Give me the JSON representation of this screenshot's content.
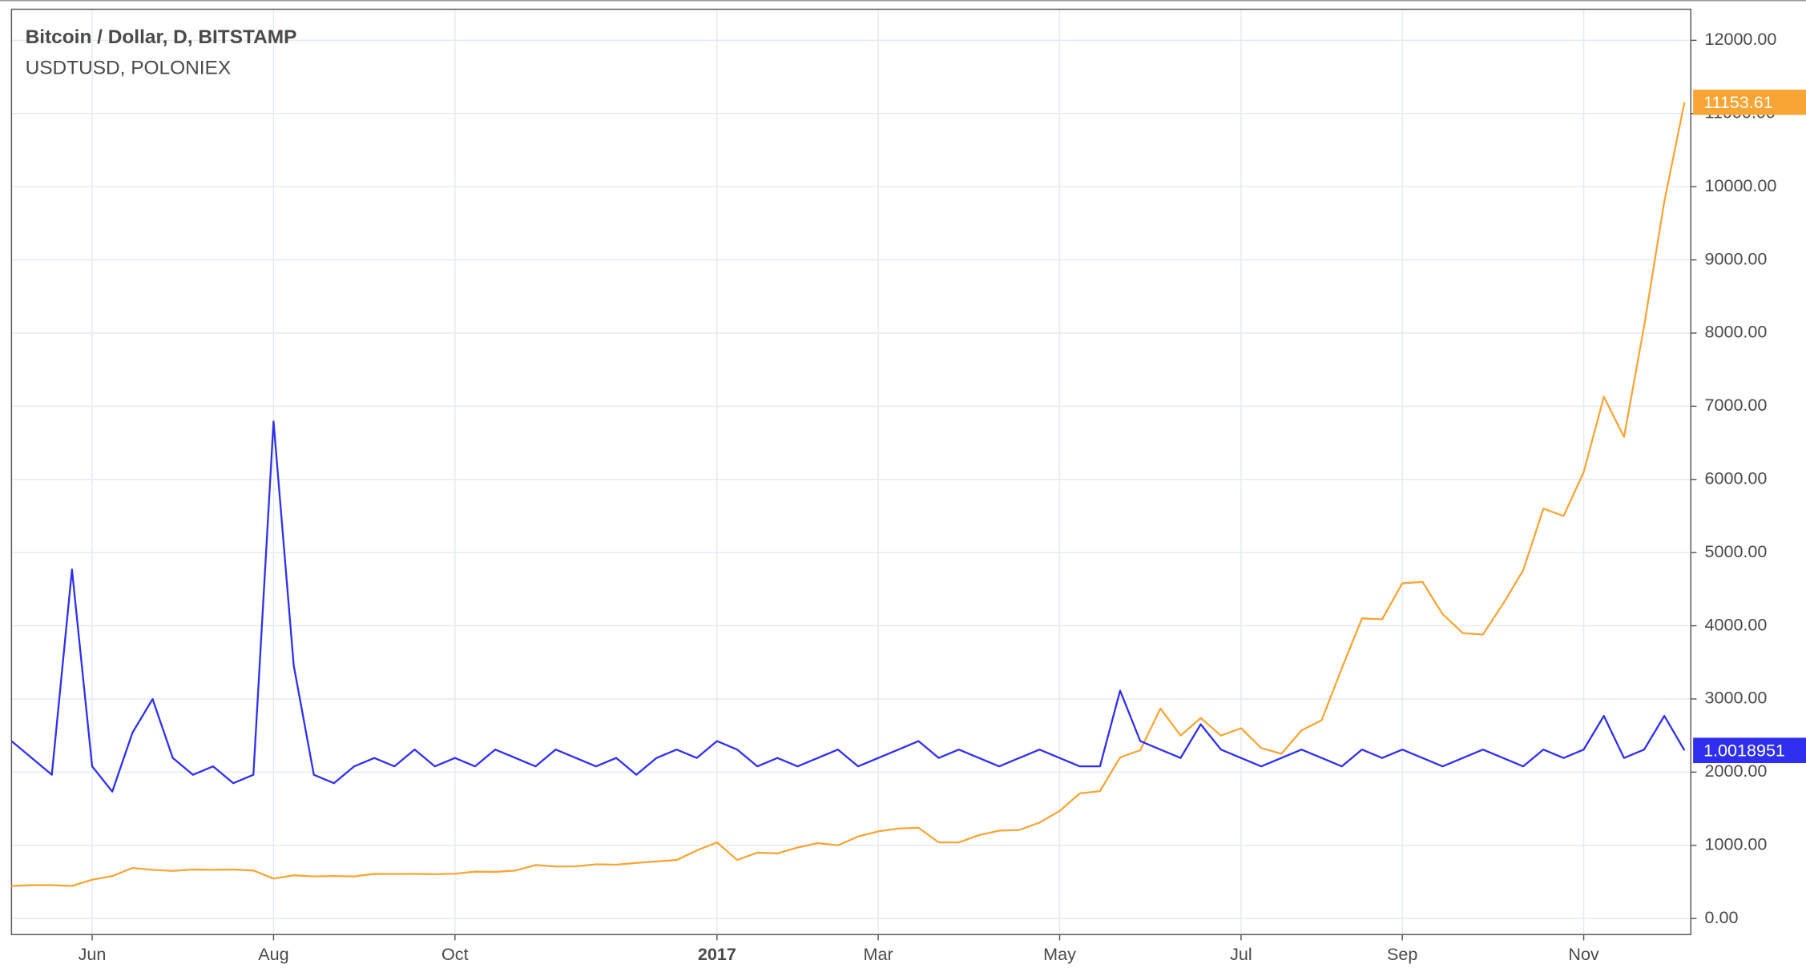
{
  "chart_data": {
    "type": "line",
    "categories": [
      null,
      null,
      null,
      null,
      "Jun",
      null,
      null,
      null,
      null,
      null,
      null,
      null,
      null,
      "Aug",
      null,
      null,
      null,
      null,
      null,
      null,
      null,
      null,
      "Oct",
      null,
      null,
      null,
      null,
      null,
      null,
      null,
      null,
      null,
      null,
      null,
      null,
      "2017",
      null,
      null,
      null,
      null,
      null,
      null,
      null,
      "Mar",
      null,
      null,
      null,
      null,
      null,
      null,
      null,
      null,
      "May",
      null,
      null,
      null,
      null,
      null,
      null,
      null,
      null,
      "Jul",
      null,
      null,
      null,
      null,
      null,
      null,
      null,
      "Sep",
      null,
      null,
      null,
      null,
      null,
      null,
      null,
      null,
      "Nov",
      null,
      null,
      null,
      null,
      null
    ],
    "series": [
      {
        "name": "Bitcoin / Dollar, D, BITSTAMP",
        "color": "#f9a535",
        "axis": "y",
        "values": [
          445,
          455,
          455,
          445,
          530,
          580,
          690,
          665,
          650,
          670,
          665,
          670,
          655,
          545,
          590,
          575,
          580,
          575,
          610,
          608,
          610,
          605,
          612,
          640,
          637,
          655,
          730,
          710,
          712,
          740,
          735,
          760,
          780,
          800,
          930,
          1040,
          800,
          900,
          890,
          970,
          1030,
          1000,
          1120,
          1190,
          1230,
          1240,
          1040,
          1040,
          1140,
          1200,
          1210,
          1310,
          1470,
          1710,
          1740,
          2200,
          2300,
          2870,
          2500,
          2740,
          2500,
          2600,
          2330,
          2250,
          2570,
          2710,
          3420,
          4100,
          4090,
          4580,
          4600,
          4160,
          3900,
          3880,
          4300,
          4760,
          5600,
          5500,
          6100,
          7130,
          6580,
          8100,
          9800,
          11153.61
        ]
      },
      {
        "name": "USDTUSD, POLONIEX",
        "color": "#2f2ff2",
        "axis": "y2",
        "values": [
          1.003,
          1.001,
          0.999,
          1.0234,
          1.0,
          0.997,
          1.004,
          1.008,
          1.001,
          0.999,
          1.0,
          0.998,
          0.999,
          1.041,
          1.012,
          0.999,
          0.998,
          1.0,
          1.001,
          1.0,
          1.002,
          1.0,
          1.001,
          1.0,
          1.002,
          1.001,
          1.0,
          1.002,
          1.001,
          1.0,
          1.001,
          0.999,
          1.001,
          1.002,
          1.001,
          1.003,
          1.002,
          1.0,
          1.001,
          1.0,
          1.001,
          1.002,
          1.0,
          1.001,
          1.002,
          1.003,
          1.001,
          1.002,
          1.001,
          1.0,
          1.001,
          1.002,
          1.001,
          1.0,
          1.0,
          1.009,
          1.003,
          1.002,
          1.001,
          1.005,
          1.002,
          1.001,
          1.0,
          1.001,
          1.002,
          1.001,
          1.0,
          1.002,
          1.001,
          1.002,
          1.001,
          1.0,
          1.001,
          1.002,
          1.001,
          1.0,
          1.002,
          1.001,
          1.002,
          1.006,
          1.001,
          1.002,
          1.006,
          1.0018951
        ]
      }
    ],
    "ylim": [
      -220,
      12425
    ],
    "yticks": [
      {
        "value": 0,
        "label": "0.00"
      },
      {
        "value": 1000,
        "label": "1000.00"
      },
      {
        "value": 2000,
        "label": "2000.00"
      },
      {
        "value": 3000,
        "label": "3000.00"
      },
      {
        "value": 4000,
        "label": "4000.00"
      },
      {
        "value": 5000,
        "label": "5000.00"
      },
      {
        "value": 6000,
        "label": "6000.00"
      },
      {
        "value": 7000,
        "label": "7000.00"
      },
      {
        "value": 8000,
        "label": "8000.00"
      },
      {
        "value": 9000,
        "label": "9000.00"
      },
      {
        "value": 10000,
        "label": "10000.00"
      },
      {
        "value": 11000,
        "label": "11000.00"
      },
      {
        "value": 12000,
        "label": "12000.00"
      }
    ],
    "y2lim": [
      0.98,
      1.09
    ],
    "grid": true
  }
}
